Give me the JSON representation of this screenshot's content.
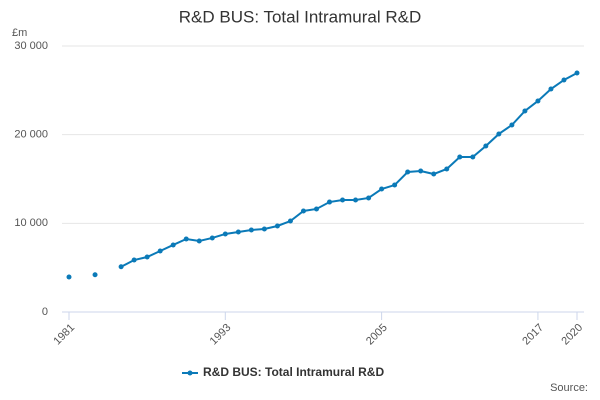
{
  "chart_data": {
    "type": "line",
    "title": "R&D BUS: Total Intramural R&D",
    "y_unit": "£m",
    "source": "Source:",
    "x": [
      1981,
      1982,
      1983,
      1984,
      1985,
      1986,
      1987,
      1988,
      1989,
      1990,
      1991,
      1992,
      1993,
      1994,
      1995,
      1996,
      1997,
      1998,
      1999,
      2000,
      2001,
      2002,
      2003,
      2004,
      2005,
      2006,
      2007,
      2008,
      2009,
      2010,
      2011,
      2012,
      2013,
      2014,
      2015,
      2016,
      2017,
      2018,
      2019,
      2020
    ],
    "series": [
      {
        "name": "R&D BUS: Total Intramural R&D",
        "color": "#0b7ab8",
        "values": [
          3950,
          null,
          4200,
          null,
          5100,
          5860,
          6200,
          6880,
          7560,
          8230,
          8010,
          8350,
          8800,
          9020,
          9250,
          9360,
          9700,
          10260,
          11390,
          11620,
          12400,
          12630,
          12630,
          12860,
          13870,
          14320,
          15790,
          15900,
          15560,
          16130,
          17480,
          17480,
          18720,
          20080,
          21090,
          22670,
          23800,
          25150,
          26170,
          26950
        ]
      }
    ],
    "xlim": [
      1981,
      2020
    ],
    "xticks": [
      1981,
      1993,
      2005,
      2017,
      2020
    ],
    "ylim": [
      0,
      30000
    ],
    "yticks": [
      0,
      {
        "value": 10000,
        "label": "10 000"
      },
      {
        "value": 20000,
        "label": "20 000"
      },
      {
        "value": 30000,
        "label": "30 000"
      }
    ],
    "grid": true
  }
}
